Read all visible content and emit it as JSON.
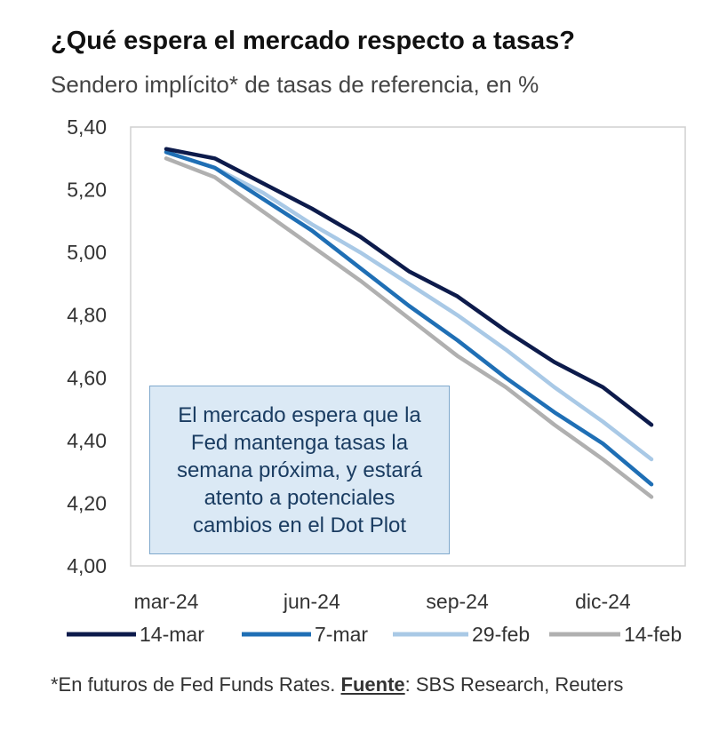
{
  "header": {
    "title": "¿Qué espera el mercado respecto a tasas?",
    "subtitle": "Sendero implícito* de tasas de referencia, en %"
  },
  "callout": {
    "text": "El mercado espera que la\nFed mantenga tasas la\nsemana próxima, y estará\natento a potenciales\ncambios en el Dot Plot"
  },
  "footnote": {
    "prefix": "*En futuros de Fed Funds Rates. ",
    "source_label": "Fuente",
    "source_text": ": SBS Research, Reuters"
  },
  "chart_data": {
    "type": "line",
    "x": [
      "mar-24",
      "abr-24",
      "may-24",
      "jun-24",
      "jul-24",
      "ago-24",
      "sep-24",
      "oct-24",
      "nov-24",
      "dic-24",
      "ene-25"
    ],
    "x_tick_labels": [
      "mar-24",
      "jun-24",
      "sep-24",
      "dic-24"
    ],
    "y_tick_labels": [
      "4,00",
      "4,20",
      "4,40",
      "4,60",
      "4,80",
      "5,00",
      "5,20",
      "5,40"
    ],
    "ylim": [
      4.0,
      5.4
    ],
    "grid": false,
    "legend_position": "bottom",
    "series": [
      {
        "name": "14-mar",
        "color": "#0d1b4b",
        "values": [
          5.33,
          5.3,
          5.22,
          5.14,
          5.05,
          4.94,
          4.86,
          4.75,
          4.65,
          4.57,
          4.45
        ]
      },
      {
        "name": "7-mar",
        "color": "#1f6fb5",
        "values": [
          5.32,
          5.27,
          5.17,
          5.07,
          4.95,
          4.83,
          4.72,
          4.6,
          4.49,
          4.39,
          4.26
        ]
      },
      {
        "name": "29-feb",
        "color": "#a9c9e6",
        "values": [
          5.32,
          5.27,
          5.19,
          5.09,
          5.0,
          4.9,
          4.8,
          4.69,
          4.57,
          4.46,
          4.34
        ]
      },
      {
        "name": "14-feb",
        "color": "#b0b0b0",
        "values": [
          5.3,
          5.24,
          5.13,
          5.02,
          4.91,
          4.79,
          4.67,
          4.57,
          4.45,
          4.34,
          4.22
        ]
      }
    ]
  }
}
